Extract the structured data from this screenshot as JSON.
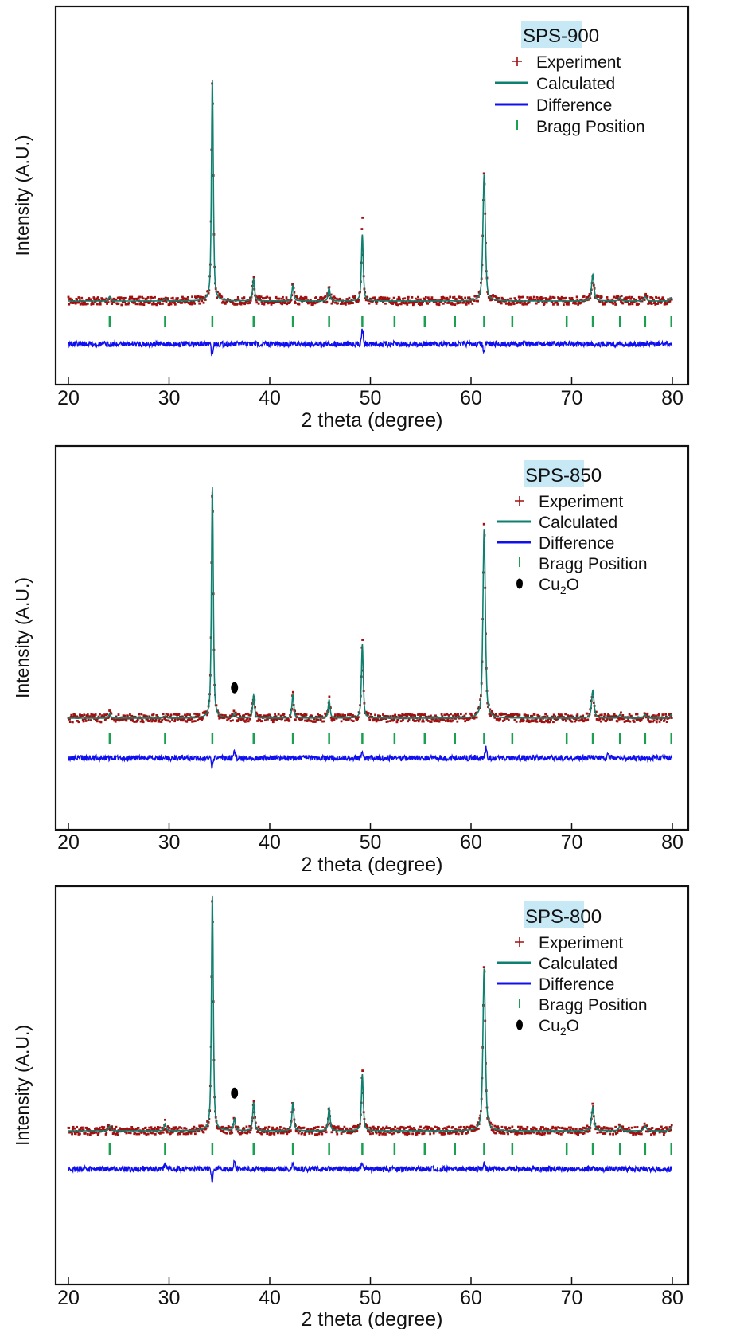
{
  "chart_data": [
    {
      "type": "scatter",
      "title": "SPS-900",
      "xlabel": "2 theta (degree)",
      "ylabel": "Intensity (A.U.)",
      "xlim": [
        20,
        80
      ],
      "xticks": [
        "20",
        "30",
        "40",
        "50",
        "60",
        "70",
        "80"
      ],
      "yticks": "none",
      "grid": false,
      "legend_position": "top-right",
      "legend": [
        "Experiment",
        "Calculated",
        "Difference",
        "Bragg Position"
      ],
      "peaks_relative_intensity": [
        [
          24.1,
          2
        ],
        [
          29.6,
          1
        ],
        [
          34.3,
          100
        ],
        [
          38.4,
          10
        ],
        [
          42.3,
          7
        ],
        [
          45.9,
          6
        ],
        [
          49.2,
          30
        ],
        [
          61.3,
          57
        ],
        [
          72.1,
          12
        ],
        [
          74.8,
          1.5
        ],
        [
          77.3,
          2
        ],
        [
          79.9,
          1.5
        ]
      ],
      "experiment_peak_overshoot": [
        [
          49.2,
          11
        ]
      ],
      "difference_features": [
        [
          34.3,
          -6
        ],
        [
          49.2,
          9
        ],
        [
          61.3,
          -5
        ]
      ],
      "bragg_positions": [
        24.1,
        29.6,
        34.3,
        38.4,
        42.3,
        45.9,
        49.2,
        52.4,
        55.4,
        58.4,
        61.3,
        64.1,
        69.5,
        72.1,
        74.8,
        77.3,
        79.9
      ],
      "cu2o_markers": []
    },
    {
      "type": "scatter",
      "title": "SPS-850",
      "xlabel": "2 theta (degree)",
      "ylabel": "Intensity (A.U.)",
      "xlim": [
        20,
        80
      ],
      "xticks": [
        "20",
        "30",
        "40",
        "50",
        "60",
        "70",
        "80"
      ],
      "yticks": "none",
      "grid": false,
      "legend_position": "top-right",
      "legend": [
        "Experiment",
        "Calculated",
        "Difference",
        "Bragg Position",
        "Cu2O"
      ],
      "peaks_relative_intensity": [
        [
          24.1,
          2
        ],
        [
          29.6,
          1
        ],
        [
          34.3,
          100
        ],
        [
          36.5,
          2
        ],
        [
          38.4,
          10
        ],
        [
          42.3,
          10
        ],
        [
          45.9,
          8
        ],
        [
          49.2,
          32
        ],
        [
          61.3,
          82
        ],
        [
          72.1,
          12
        ],
        [
          74.8,
          1.5
        ],
        [
          77.3,
          1.5
        ],
        [
          79.9,
          1.5
        ]
      ],
      "experiment_peak_overshoot": [
        [
          49.2,
          5
        ],
        [
          61.3,
          5
        ]
      ],
      "difference_features": [
        [
          34.3,
          -6
        ],
        [
          36.5,
          4
        ],
        [
          49.2,
          4
        ],
        [
          61.5,
          6
        ],
        [
          73.6,
          2
        ]
      ],
      "bragg_positions": [
        24.1,
        29.6,
        34.3,
        38.4,
        42.3,
        45.9,
        49.2,
        52.4,
        55.4,
        58.4,
        61.3,
        64.1,
        69.5,
        72.1,
        74.8,
        77.3,
        79.9
      ],
      "cu2o_markers": [
        36.5
      ]
    },
    {
      "type": "scatter",
      "title": "SPS-800",
      "xlabel": "2 theta (degree)",
      "ylabel": "Intensity (A.U.)",
      "xlim": [
        20,
        80
      ],
      "xticks": [
        "20",
        "30",
        "40",
        "50",
        "60",
        "70",
        "80"
      ],
      "yticks": "none",
      "grid": false,
      "legend_position": "top-right",
      "legend": [
        "Experiment",
        "Calculated",
        "Difference",
        "Bragg Position",
        "Cu2O"
      ],
      "peaks_relative_intensity": [
        [
          24.1,
          2
        ],
        [
          29.6,
          3
        ],
        [
          34.3,
          100
        ],
        [
          36.5,
          5
        ],
        [
          38.4,
          12
        ],
        [
          42.3,
          12
        ],
        [
          45.9,
          10
        ],
        [
          49.2,
          24
        ],
        [
          61.3,
          69
        ],
        [
          72.1,
          10
        ],
        [
          74.8,
          2
        ],
        [
          77.3,
          2
        ],
        [
          79.9,
          1.5
        ]
      ],
      "experiment_peak_overshoot": [
        [
          49.2,
          4
        ],
        [
          61.3,
          3
        ]
      ],
      "difference_features": [
        [
          29.6,
          3
        ],
        [
          34.3,
          -7
        ],
        [
          36.5,
          5
        ],
        [
          42.3,
          2
        ],
        [
          49.2,
          3
        ],
        [
          61.3,
          4
        ]
      ],
      "bragg_positions": [
        24.1,
        29.6,
        34.3,
        38.4,
        42.3,
        45.9,
        49.2,
        52.4,
        55.4,
        58.4,
        61.3,
        64.1,
        69.5,
        72.1,
        74.8,
        77.3,
        79.9
      ],
      "cu2o_markers": [
        36.5
      ]
    }
  ],
  "legend_labels": {
    "experiment": "Experiment",
    "calculated": "Calculated",
    "difference": "Difference",
    "bragg": "Bragg Position",
    "cu2o_main": "Cu",
    "cu2o_sub": "2",
    "cu2o_tail": "O"
  },
  "colors": {
    "experiment": "#a01010",
    "calculated": "#0f7f6e",
    "difference": "#1010ee",
    "bragg": "#1aa050",
    "title_bg": "#c7e9f6",
    "cu2o_marker": "#000000"
  }
}
